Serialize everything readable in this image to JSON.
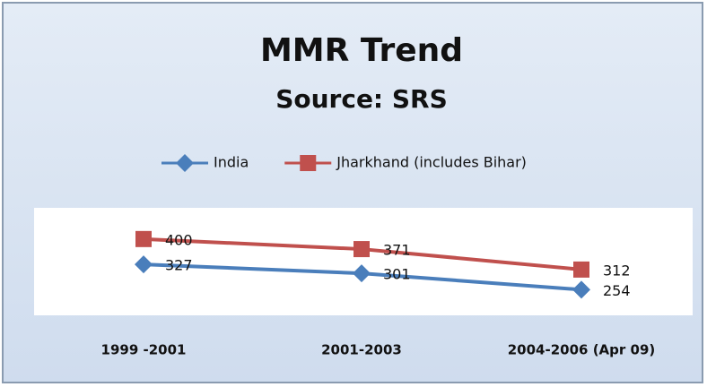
{
  "chart_data": {
    "type": "line",
    "title": "MMR Trend",
    "subtitle": "Source: SRS",
    "categories": [
      "1999 -2001",
      "2001-2003",
      "2004-2006 (Apr 09)"
    ],
    "series": [
      {
        "name": "India",
        "color": "#4a7ebb",
        "marker": "diamond",
        "values": [
          327,
          301,
          254
        ]
      },
      {
        "name": "Jharkhand (includes Bihar)",
        "color": "#c0504d",
        "marker": "square",
        "values": [
          400,
          371,
          312
        ]
      }
    ],
    "ylim": [
      180,
      490
    ],
    "legend": "top",
    "data_labels": true
  }
}
